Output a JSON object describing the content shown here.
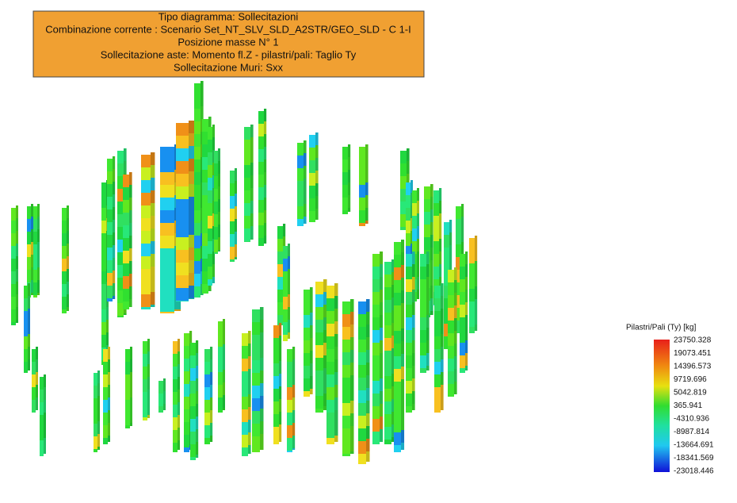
{
  "header": {
    "lines": [
      "Tipo diagramma: Sollecitazioni",
      "Combinazione corrente : Scenario Set_NT_SLV_SLD_A2STR/GEO_SLD - C 1-I",
      "Posizione masse N° 1",
      "Sollecitazione aste: Momento fl.Z - pilastri/pali: Taglio Ty",
      "Sollecitazione Muri: Sxx"
    ]
  },
  "legend": {
    "title": "Pilastri/Pali (Ty) [kg]",
    "labels": [
      "23750.328",
      "19073.451",
      "14396.573",
      "9719.696",
      "5042.819",
      "365.941",
      "-4310.936",
      "-8987.814",
      "-13664.691",
      "-18341.569",
      "-23018.446"
    ]
  }
}
